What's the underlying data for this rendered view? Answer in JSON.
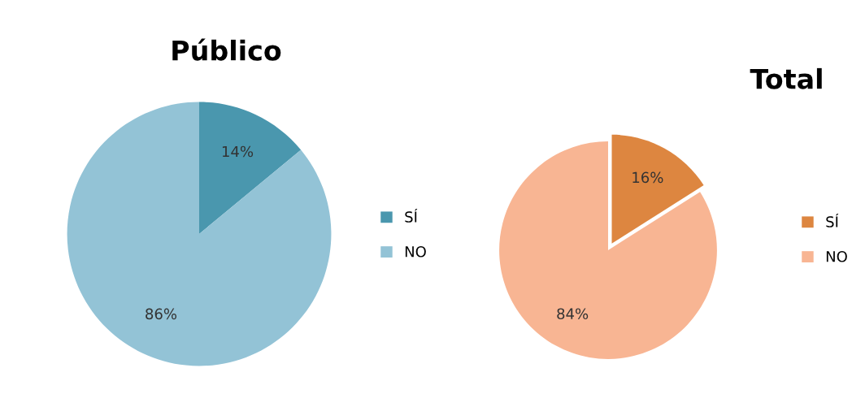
{
  "chart_data": [
    {
      "type": "pie",
      "title": "Público",
      "categories": [
        "SÍ",
        "NO"
      ],
      "values": [
        14,
        86
      ],
      "colors": [
        "#4a97ae",
        "#93c3d6"
      ],
      "value_labels": [
        "14%",
        "86%"
      ],
      "legend": "right"
    },
    {
      "type": "pie",
      "title": "Total",
      "categories": [
        "SÍ",
        "NO"
      ],
      "values": [
        16,
        84
      ],
      "colors": [
        "#dd8640",
        "#f8b593"
      ],
      "value_labels": [
        "16%",
        "84%"
      ],
      "legend": "right"
    }
  ]
}
